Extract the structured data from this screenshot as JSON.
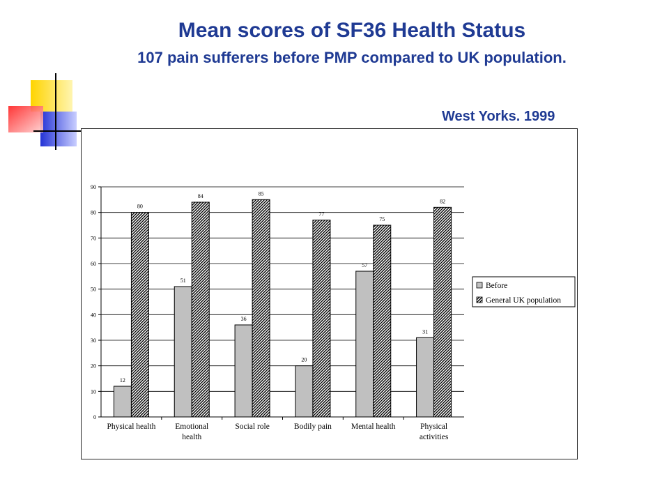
{
  "slide": {
    "title": "Mean scores of SF36 Health Status",
    "subtitle": "107 pain sufferers before PMP compared to UK population.",
    "source": "West Yorks. 1999"
  },
  "colors": {
    "title": "#1f3a93",
    "deco_yellow": "#ffd400",
    "deco_blue": "#2433d6",
    "deco_red": "#ff3b3b",
    "before_fill": "#c0c0c0"
  },
  "chart_data": {
    "type": "bar",
    "categories": [
      "Physical health",
      "Emotional health",
      "Social role",
      "Bodily pain",
      "Mental health",
      "Physical activities"
    ],
    "category_lines": [
      [
        "Physical health"
      ],
      [
        "Emotional",
        "health"
      ],
      [
        "Social role"
      ],
      [
        "Bodily pain"
      ],
      [
        "Mental health"
      ],
      [
        "Physical",
        "activities"
      ]
    ],
    "series": [
      {
        "name": "Before",
        "values": [
          12,
          51,
          36,
          20,
          57,
          31
        ],
        "fill": "#c0c0c0",
        "pattern": "solid"
      },
      {
        "name": "General UK population",
        "values": [
          80,
          84,
          85,
          77,
          75,
          82
        ],
        "fill": "#000000",
        "pattern": "diagonal-hatch"
      }
    ],
    "ylim": [
      0,
      90
    ],
    "yticks": [
      0,
      10,
      20,
      30,
      40,
      50,
      60,
      70,
      80,
      90
    ],
    "grid": true,
    "data_labels": true,
    "legend_position": "right"
  }
}
